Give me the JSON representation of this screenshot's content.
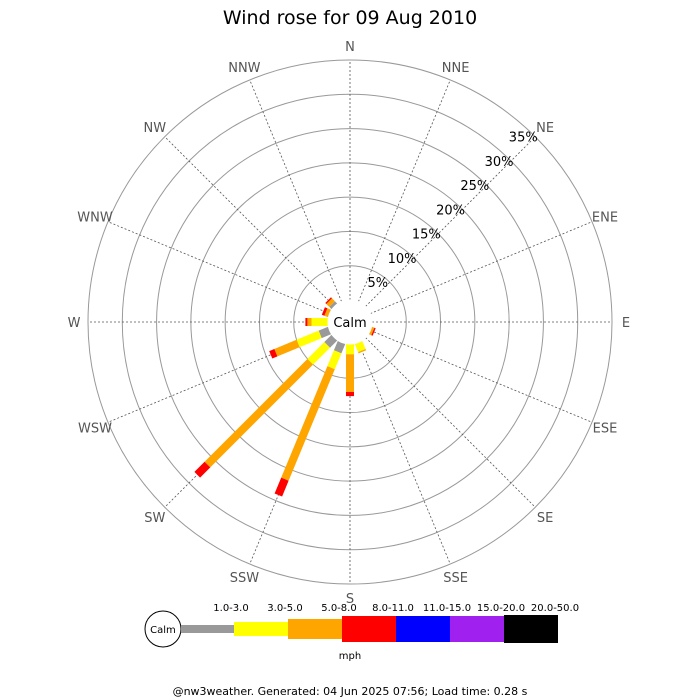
{
  "chart_data": {
    "type": "wind-rose",
    "title": "Wind rose for 09 Aug 2010",
    "directions": [
      "N",
      "NNE",
      "NE",
      "ENE",
      "E",
      "ESE",
      "SE",
      "SSE",
      "S",
      "SSW",
      "SW",
      "WSW",
      "W",
      "WNW",
      "NW",
      "NNW"
    ],
    "radial_ticks": [
      "5%",
      "10%",
      "15%",
      "20%",
      "25%",
      "30%",
      "35%"
    ],
    "radial_range": [
      0,
      35
    ],
    "calm_label": "Calm",
    "unit": "mph",
    "speed_bins": [
      {
        "label": "1.0-3.0",
        "color": "#999999"
      },
      {
        "label": "3.0-5.0",
        "color": "#ffff00"
      },
      {
        "label": "5.0-8.0",
        "color": "#ffa500"
      },
      {
        "label": "8.0-11.0",
        "color": "#ff0000"
      },
      {
        "label": "11.0-15.0",
        "color": "#0000ff"
      },
      {
        "label": "15.0-20.0",
        "color": "#a020f0"
      },
      {
        "label": "20.0-50.0",
        "color": "#000000"
      }
    ],
    "series": [
      {
        "direction": "ESE",
        "values": [
          0,
          0,
          0.4,
          0.2,
          0,
          0,
          0
        ]
      },
      {
        "direction": "SSE",
        "values": [
          0,
          1.3,
          0.2,
          0,
          0,
          0,
          0
        ]
      },
      {
        "direction": "S",
        "values": [
          0,
          1.5,
          5.5,
          0.6,
          0,
          0,
          0
        ]
      },
      {
        "direction": "SSW",
        "values": [
          1.5,
          2.5,
          17.6,
          2.5,
          0,
          0,
          0
        ]
      },
      {
        "direction": "SW",
        "values": [
          1.5,
          3.5,
          21.2,
          2.1,
          0,
          0,
          0
        ]
      },
      {
        "direction": "WSW",
        "values": [
          1.5,
          3.5,
          3.5,
          0.8,
          0,
          0,
          0
        ]
      },
      {
        "direction": "W",
        "values": [
          0,
          2.4,
          0.6,
          0.3,
          0,
          0,
          0
        ]
      },
      {
        "direction": "WNW",
        "values": [
          0,
          0,
          0.6,
          0.4,
          0,
          0,
          0
        ]
      },
      {
        "direction": "NW",
        "values": [
          0.5,
          0,
          0.6,
          0.2,
          0,
          0,
          0
        ]
      }
    ]
  },
  "footer": "@nw3weather. Generated: 04 Jun 2025 07:56; Load time: 0.28 s"
}
